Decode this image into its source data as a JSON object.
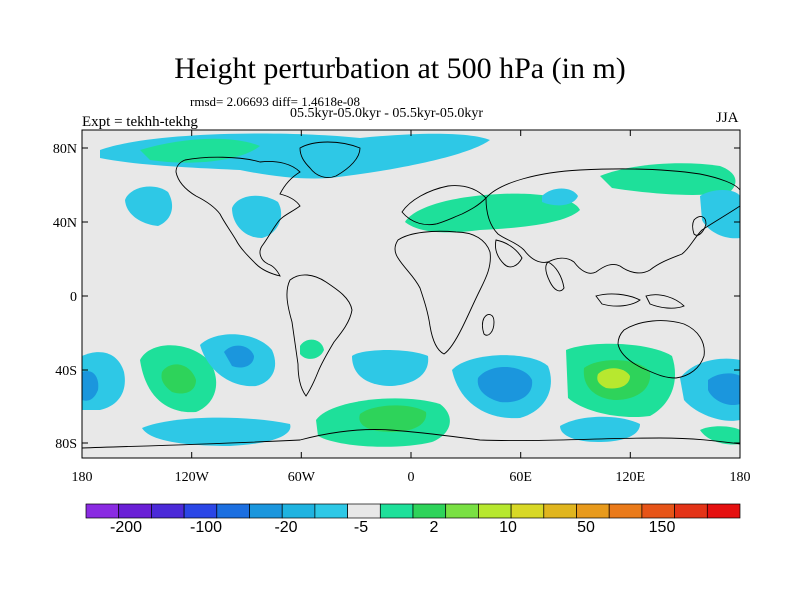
{
  "title": "Height perturbation at 500 hPa (in m)",
  "stats_line": "rmsd= 2.06693 diff= 1.4618e-08",
  "case_line": "05.5kyr-05.0kyr - 05.5kyr-05.0kyr",
  "expt_label": "Expt = tekhh-tekhg",
  "season_label": "JJA",
  "lat_ticks": [
    "80N",
    "40N",
    "0",
    "40S",
    "80S"
  ],
  "lon_ticks": [
    "180",
    "120W",
    "60W",
    "0",
    "60E",
    "120E",
    "180"
  ],
  "colorbar": {
    "labels": [
      "-200",
      "-100",
      "-20",
      "-5",
      "2",
      "10",
      "50",
      "150"
    ],
    "colors": [
      "#8a2be2",
      "#6a1fd6",
      "#4b2ad8",
      "#2b46e6",
      "#1c6fe0",
      "#1b96dd",
      "#1fb3e0",
      "#2ec8e6",
      "#e8e8e8",
      "#1ee09a",
      "#2ed35a",
      "#79e043",
      "#b7e82f",
      "#d8d826",
      "#e0b51e",
      "#e89a1c",
      "#ea7a1a",
      "#e65418",
      "#e33317",
      "#e51010"
    ]
  },
  "colors": {
    "neutral": "#e8e8e8",
    "cyan": "#2ec8e6",
    "light_blue": "#1fb3e0",
    "mid_blue": "#1b96dd",
    "teal_green": "#1ee09a",
    "green": "#2ed35a",
    "yellow_green": "#b7e82f",
    "coast": "#000000"
  }
}
